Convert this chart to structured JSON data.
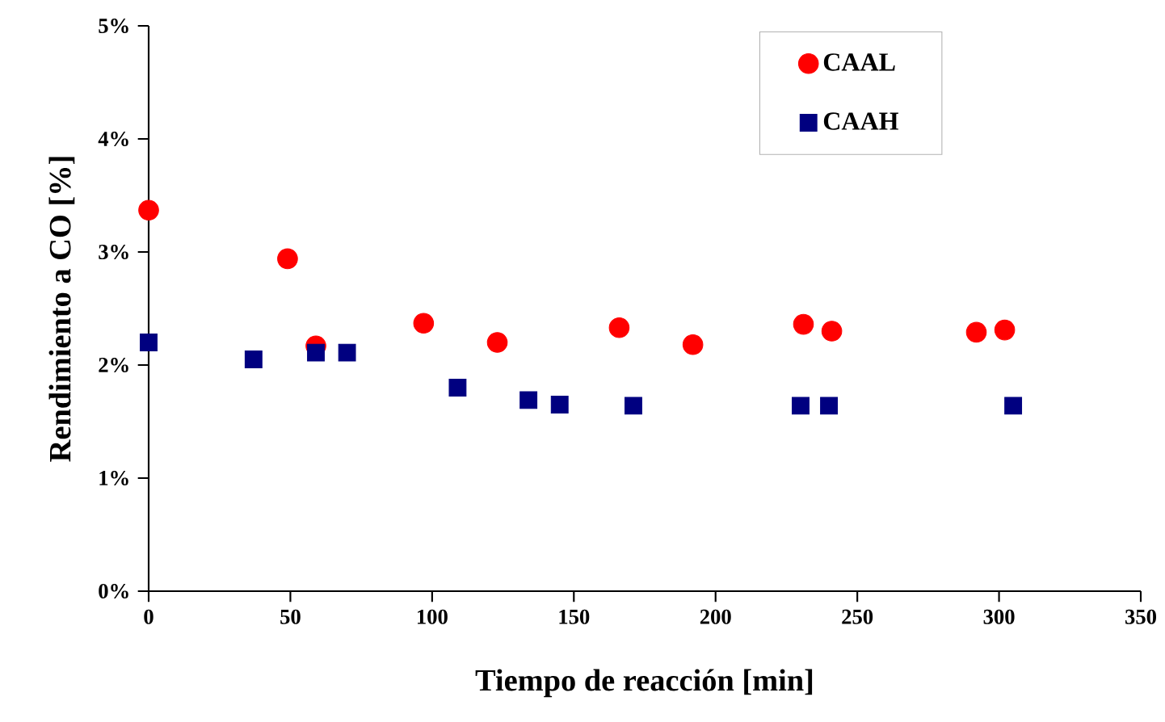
{
  "chart_data": {
    "type": "scatter",
    "xlabel": "Tiempo de reacción [min]",
    "ylabel": "Rendimiento a CO [%]",
    "xlim": [
      0,
      350
    ],
    "xticks": [
      0,
      50,
      100,
      150,
      200,
      250,
      300,
      350
    ],
    "ylim": [
      0,
      5
    ],
    "yticks": [
      {
        "value": 0,
        "label": "0%"
      },
      {
        "value": 1,
        "label": "1%"
      },
      {
        "value": 2,
        "label": "2%"
      },
      {
        "value": 3,
        "label": "3%"
      },
      {
        "value": 4,
        "label": "4%"
      },
      {
        "value": 5,
        "label": "5%"
      }
    ],
    "grid": false,
    "legend": "top right",
    "series": [
      {
        "name": "CAAL",
        "color": "#ff0000",
        "marker": "circle",
        "x": [
          0,
          49,
          59,
          97,
          123,
          166,
          192,
          231,
          241,
          292,
          302
        ],
        "values": [
          3.37,
          2.94,
          2.17,
          2.37,
          2.2,
          2.33,
          2.18,
          2.36,
          2.3,
          2.29,
          2.31
        ]
      },
      {
        "name": "CAAH",
        "color": "#000080",
        "marker": "square",
        "x": [
          0,
          37,
          59,
          70,
          109,
          134,
          145,
          171,
          230,
          240,
          305
        ],
        "values": [
          2.2,
          2.05,
          2.11,
          2.11,
          1.8,
          1.69,
          1.65,
          1.64,
          1.64,
          1.64,
          1.64
        ]
      }
    ]
  }
}
